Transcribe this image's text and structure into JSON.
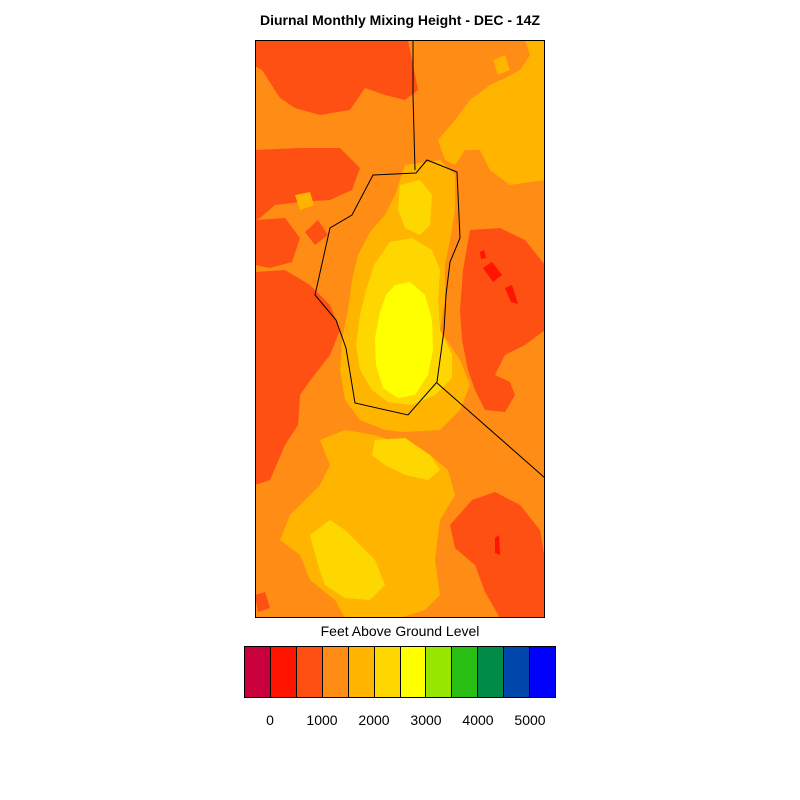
{
  "title": "Diurnal Monthly Mixing Height - DEC - 14Z",
  "colorbar": {
    "label": "Feet Above Ground Level",
    "colors": [
      "#c8003c",
      "#ff1400",
      "#ff5014",
      "#ff8c14",
      "#ffb400",
      "#ffd700",
      "#ffff00",
      "#96e600",
      "#28be14",
      "#008c46",
      "#0046aa",
      "#0000ff"
    ],
    "tick_labels": [
      "0",
      "1000",
      "2000",
      "3000",
      "4000",
      "5000"
    ],
    "tick_values": [
      0,
      1000,
      2000,
      3000,
      4000,
      5000
    ]
  },
  "map": {
    "field_colors": {
      "background": "#ff8c14",
      "high_low": "#ff5014",
      "lowest": "#ff1400",
      "mid": "#ffb400",
      "upper": "#ffd700",
      "peak": "#ffff00"
    }
  }
}
